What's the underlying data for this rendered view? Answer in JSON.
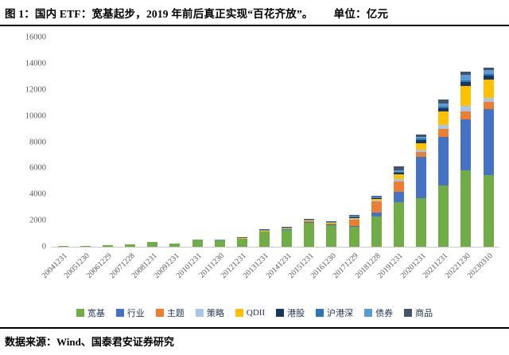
{
  "header": {
    "title": "图 1：国内 ETF：宽基起步，2019 年前后真正实现“百花齐放”。",
    "unit_label": "单位：亿元"
  },
  "footer": {
    "source": "数据来源：Wind、国泰君安证券研究"
  },
  "chart_data": {
    "type": "bar",
    "stacked": true,
    "title": "国内 ETF：宽基起步，2019 年前后真正实现“百花齐放”",
    "ylabel": "亿元",
    "ylim": [
      0,
      16000
    ],
    "ytick_step": 2000,
    "grid": false,
    "legend_position": "bottom",
    "categories": [
      "20041231",
      "20051230",
      "20061229",
      "20071228",
      "20081231",
      "20091231",
      "20101231",
      "20111230",
      "20121231",
      "20131231",
      "20141231",
      "20151231",
      "20161230",
      "20171229",
      "20181228",
      "20191231",
      "20201231",
      "20211231",
      "20221230",
      "20230310"
    ],
    "series": [
      {
        "name": "宽基",
        "color": "#70AD47",
        "values": [
          54,
          65,
          130,
          170,
          370,
          225,
          530,
          480,
          590,
          1150,
          1280,
          1850,
          1650,
          1500,
          2300,
          3400,
          3700,
          4700,
          5850,
          5450
        ]
      },
      {
        "name": "行业",
        "color": "#4472C4",
        "values": [
          0,
          0,
          0,
          0,
          0,
          0,
          0,
          0,
          0,
          0,
          40,
          60,
          30,
          100,
          300,
          800,
          3150,
          3700,
          3900,
          5100
        ]
      },
      {
        "name": "主题",
        "color": "#ED7D31",
        "values": [
          0,
          0,
          0,
          0,
          0,
          0,
          0,
          0,
          0,
          0,
          0,
          30,
          30,
          450,
          900,
          800,
          420,
          600,
          600,
          500
        ]
      },
      {
        "name": "策略",
        "color": "#A9C5E8",
        "values": [
          0,
          0,
          0,
          0,
          0,
          0,
          0,
          0,
          0,
          0,
          0,
          0,
          0,
          20,
          30,
          150,
          150,
          300,
          400,
          300
        ]
      },
      {
        "name": "QDII",
        "color": "#FFC000",
        "values": [
          0,
          0,
          0,
          0,
          0,
          0,
          0,
          0,
          20,
          40,
          40,
          30,
          40,
          80,
          100,
          400,
          500,
          1050,
          1550,
          1430
        ]
      },
      {
        "name": "港股",
        "color": "#17375E",
        "values": [
          0,
          0,
          0,
          0,
          0,
          0,
          0,
          0,
          0,
          0,
          0,
          0,
          0,
          30,
          30,
          100,
          250,
          250,
          300,
          300
        ]
      },
      {
        "name": "沪港深",
        "color": "#2E75B6",
        "values": [
          0,
          0,
          0,
          0,
          0,
          0,
          0,
          0,
          0,
          0,
          0,
          0,
          0,
          20,
          10,
          50,
          80,
          100,
          100,
          100
        ]
      },
      {
        "name": "债券",
        "color": "#5B9BD5",
        "values": [
          0,
          0,
          0,
          0,
          0,
          0,
          0,
          30,
          0,
          30,
          20,
          10,
          10,
          30,
          40,
          150,
          150,
          250,
          450,
          320
        ]
      },
      {
        "name": "商品",
        "color": "#44546A",
        "values": [
          0,
          0,
          0,
          0,
          0,
          0,
          0,
          0,
          10,
          50,
          40,
          30,
          60,
          60,
          70,
          300,
          200,
          310,
          250,
          200
        ]
      }
    ]
  }
}
